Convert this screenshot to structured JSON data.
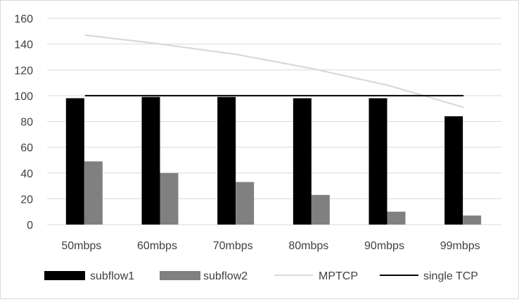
{
  "chart_data": {
    "type": "bar",
    "title": "",
    "xlabel": "",
    "ylabel": "",
    "categories": [
      "50mbps",
      "60mbps",
      "70mbps",
      "80mbps",
      "90mbps",
      "99mbps"
    ],
    "ylim": [
      0,
      160
    ],
    "yticks": [
      0,
      20,
      40,
      60,
      80,
      100,
      120,
      140,
      160
    ],
    "grid": true,
    "legend_position": "bottom",
    "series": [
      {
        "name": "subflow1",
        "kind": "bar",
        "color": "#000000",
        "values": [
          98,
          99,
          99,
          98,
          98,
          84
        ]
      },
      {
        "name": "subflow2",
        "kind": "bar",
        "color": "#808080",
        "values": [
          49,
          40,
          33,
          23,
          10,
          7
        ]
      },
      {
        "name": "MPTCP",
        "kind": "line",
        "color": "#d9d9d9",
        "values": [
          147,
          140,
          132,
          121,
          108,
          91
        ]
      },
      {
        "name": "single TCP",
        "kind": "line",
        "color": "#000000",
        "values": [
          100,
          100,
          100,
          100,
          100,
          100
        ]
      }
    ]
  }
}
